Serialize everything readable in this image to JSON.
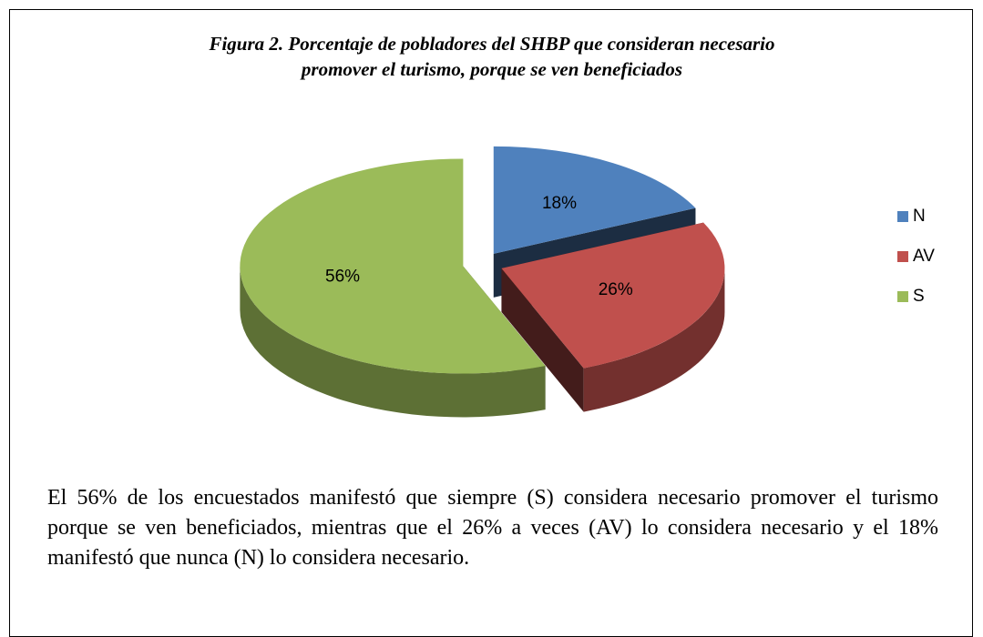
{
  "chart_data": {
    "type": "pie",
    "title": "Figura 2. Porcentaje de pobladores del SHBP que consideran necesario promover el turismo, porque se ven beneficiados",
    "categories": [
      "N",
      "AV",
      "S"
    ],
    "values": [
      18,
      26,
      56
    ],
    "value_labels": [
      "18%",
      "26%",
      "56%"
    ],
    "colors": [
      "#4f81bd",
      "#c0504d",
      "#9bbb59"
    ],
    "legend": "right"
  },
  "paragraph": "El 56% de los encuestados manifestó que siempre (S) considera necesario promover el turismo porque se ven beneficiados, mientras que el 26% a veces (AV) lo considera necesario y el 18% manifestó que nunca (N) lo considera necesario."
}
